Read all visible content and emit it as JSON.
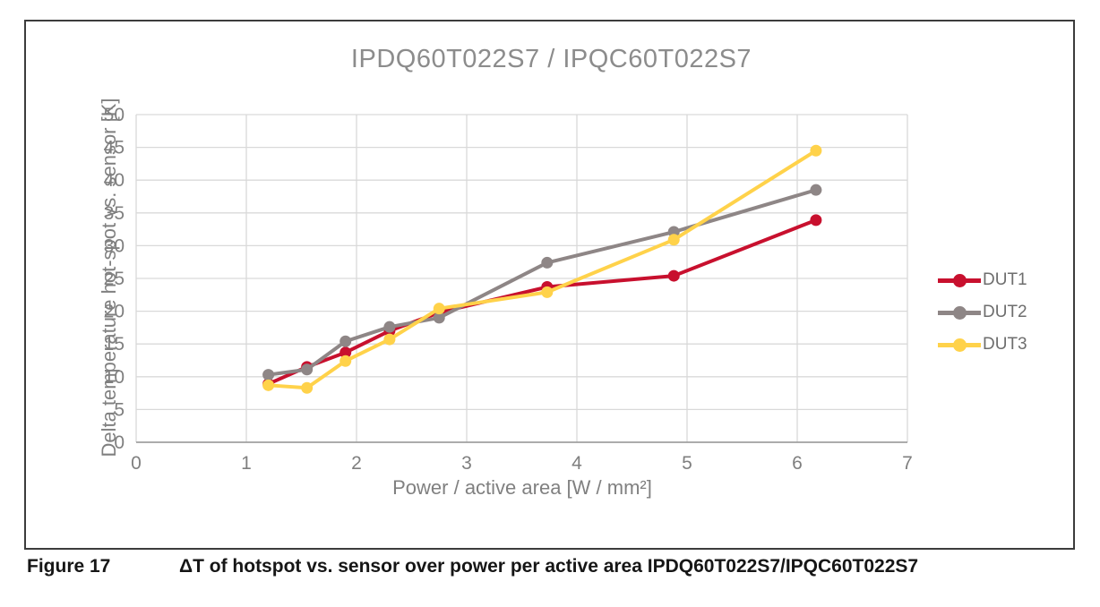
{
  "figure": {
    "caption_label": "Figure 17",
    "caption_text": "ΔT of hotspot vs. sensor over power per active area IPDQ60T022S7/IPQC60T022S7"
  },
  "chart_data": {
    "type": "line",
    "title": "IPDQ60T022S7 / IPQC60T022S7",
    "xlabel": "Power / active area [W / mm²]",
    "ylabel": "Delta temperature hot-spot vs. sensor [K]",
    "xlim": [
      0,
      7
    ],
    "ylim": [
      0,
      50
    ],
    "x_ticks": [
      0,
      1,
      2,
      3,
      4,
      5,
      6,
      7
    ],
    "y_ticks": [
      0,
      5,
      10,
      15,
      20,
      25,
      30,
      35,
      40,
      45,
      50
    ],
    "grid": true,
    "legend_position": "right",
    "x": [
      1.2,
      1.55,
      1.9,
      2.3,
      2.75,
      3.73,
      4.88,
      6.17
    ],
    "series": [
      {
        "name": "DUT1",
        "color": "#c8102e",
        "values": [
          8.9,
          11.5,
          13.7,
          17.0,
          19.8,
          23.7,
          25.4,
          33.9
        ]
      },
      {
        "name": "DUT2",
        "color": "#8e8686",
        "values": [
          10.3,
          11.1,
          15.4,
          17.6,
          19.0,
          27.4,
          32.1,
          38.5
        ]
      },
      {
        "name": "DUT3",
        "color": "#ffd24a",
        "values": [
          8.7,
          8.3,
          12.4,
          15.7,
          20.4,
          22.9,
          30.9,
          44.5
        ]
      }
    ],
    "style": {
      "grid_color": "#d9d9d9",
      "axis_color": "#a0a0a0",
      "tick_label_color": "#7f7f7f",
      "title_color": "#8c8c8c",
      "line_width": 4,
      "marker_radius": 6.5
    }
  }
}
